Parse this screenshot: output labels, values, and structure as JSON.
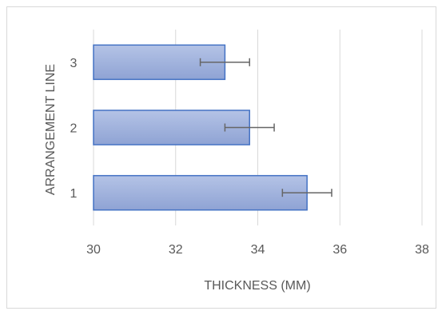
{
  "chart_data": {
    "type": "bar",
    "orientation": "horizontal",
    "categories": [
      "1",
      "2",
      "3"
    ],
    "values": [
      35.2,
      33.8,
      33.2
    ],
    "error": [
      0.6,
      0.6,
      0.6
    ],
    "xlabel": "THICKNESS (MM)",
    "ylabel": "ARRANGEMENT LINE",
    "xlim": [
      30,
      38
    ],
    "xticks": [
      "30",
      "32",
      "34",
      "36",
      "38"
    ],
    "grid": true,
    "colors": {
      "bar_fill": "#9daed8",
      "bar_stroke": "#4472c4",
      "error_bar": "#666666",
      "grid": "#d9d9d9",
      "text": "#595959"
    }
  }
}
